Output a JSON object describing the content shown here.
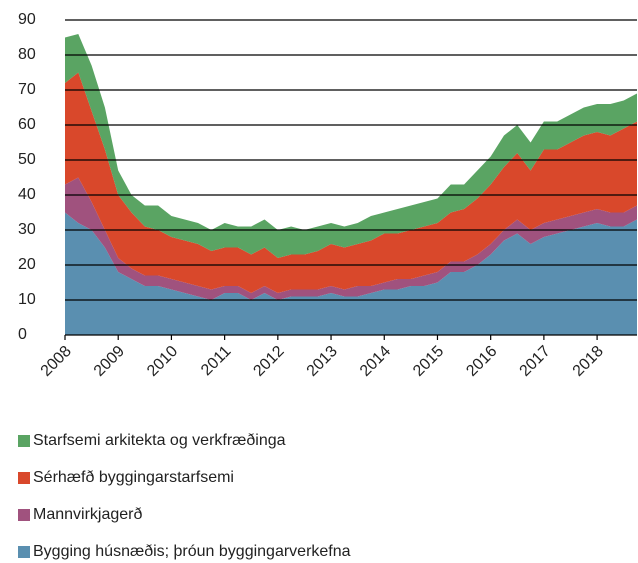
{
  "chart_data": {
    "type": "stacked_area",
    "x": [
      2008,
      2008.25,
      2008.5,
      2008.75,
      2009,
      2009.25,
      2009.5,
      2009.75,
      2010,
      2010.25,
      2010.5,
      2010.75,
      2011,
      2011.25,
      2011.5,
      2011.75,
      2012,
      2012.25,
      2012.5,
      2012.75,
      2013,
      2013.25,
      2013.5,
      2013.75,
      2014,
      2014.25,
      2014.5,
      2014.75,
      2015,
      2015.25,
      2015.5,
      2015.75,
      2016,
      2016.25,
      2016.5,
      2016.75,
      2017,
      2017.25,
      2017.5,
      2017.75,
      2018,
      2018.25,
      2018.5,
      2018.75
    ],
    "xlim": [
      2008,
      2018.75
    ],
    "xticks": [
      2008,
      2009,
      2010,
      2011,
      2012,
      2013,
      2014,
      2015,
      2016,
      2017,
      2018
    ],
    "ylim": [
      0,
      90
    ],
    "yticks": [
      0,
      10,
      20,
      30,
      40,
      50,
      60,
      70,
      80,
      90
    ],
    "grid": true,
    "series": [
      {
        "name": "Starfsemi arkitekta og verkfræðinga",
        "color": "#5aa463",
        "values": [
          13,
          11,
          13,
          12,
          7,
          5,
          6,
          7,
          6,
          6,
          6,
          6,
          7,
          6,
          8,
          8,
          8,
          8,
          7,
          7,
          6,
          6,
          6,
          7,
          6,
          7,
          7,
          7,
          7,
          8,
          7,
          8,
          8,
          9,
          8,
          8,
          8,
          8,
          8,
          8,
          8,
          9,
          8,
          8
        ]
      },
      {
        "name": "Sérhæfð byggingarstarfsemi",
        "color": "#d9482b",
        "values": [
          29,
          30,
          26,
          23,
          18,
          16,
          14,
          13,
          12,
          12,
          12,
          11,
          11,
          11,
          11,
          11,
          10,
          10,
          10,
          11,
          12,
          12,
          12,
          13,
          14,
          13,
          14,
          14,
          14,
          14,
          15,
          16,
          17,
          18,
          19,
          17,
          21,
          20,
          21,
          22,
          22,
          22,
          24,
          24
        ]
      },
      {
        "name": "Mannvirkjagerð",
        "color": "#a0527e",
        "values": [
          8,
          13,
          8,
          5,
          4,
          3,
          3,
          3,
          3,
          3,
          3,
          3,
          2,
          2,
          2,
          2,
          2,
          2,
          2,
          2,
          2,
          2,
          3,
          2,
          2,
          3,
          2,
          3,
          3,
          3,
          3,
          3,
          3,
          3,
          4,
          4,
          4,
          4,
          4,
          4,
          4,
          4,
          4,
          4
        ]
      },
      {
        "name": "Bygging húsnæðis; þróun byggingarverkefna",
        "color": "#5a8fb0",
        "values": [
          35,
          32,
          30,
          25,
          18,
          16,
          14,
          14,
          13,
          12,
          11,
          10,
          12,
          12,
          10,
          12,
          10,
          11,
          11,
          11,
          12,
          11,
          11,
          12,
          13,
          13,
          14,
          14,
          15,
          18,
          18,
          20,
          23,
          27,
          29,
          26,
          28,
          29,
          30,
          31,
          32,
          31,
          31,
          33
        ]
      }
    ]
  }
}
